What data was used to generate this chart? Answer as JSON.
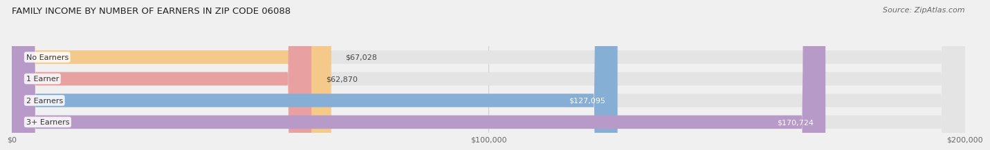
{
  "title": "FAMILY INCOME BY NUMBER OF EARNERS IN ZIP CODE 06088",
  "source": "Source: ZipAtlas.com",
  "categories": [
    "No Earners",
    "1 Earner",
    "2 Earners",
    "3+ Earners"
  ],
  "values": [
    67028,
    62870,
    127095,
    170724
  ],
  "bar_colors": [
    "#f5c98a",
    "#e8a0a0",
    "#87aed4",
    "#b89ac8"
  ],
  "label_colors": [
    "#555555",
    "#555555",
    "#ffffff",
    "#ffffff"
  ],
  "xlim": [
    0,
    200000
  ],
  "xticks": [
    0,
    100000,
    200000
  ],
  "xtick_labels": [
    "$0",
    "$100,000",
    "$200,000"
  ],
  "bg_color": "#f0f0f0",
  "bar_bg_color": "#e4e4e4",
  "title_fontsize": 9.5,
  "source_fontsize": 8,
  "label_fontsize": 8,
  "tick_fontsize": 8,
  "category_fontsize": 8
}
